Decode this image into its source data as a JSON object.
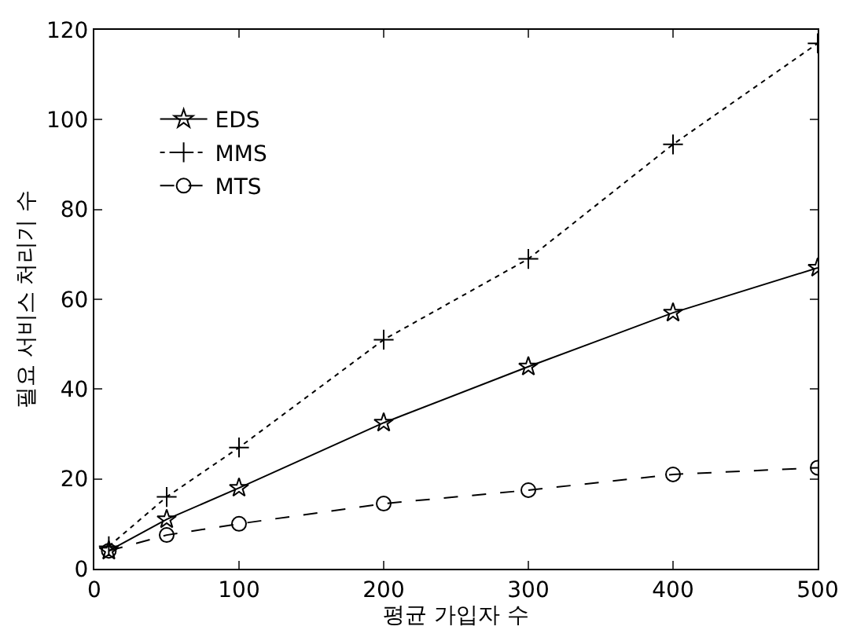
{
  "chart_data": {
    "type": "line",
    "xlabel": "평균 가입자 수",
    "ylabel": "필요 서비스 처리기 수",
    "x": [
      10,
      50,
      100,
      200,
      300,
      400,
      500
    ],
    "series": [
      {
        "name": "EDS",
        "color": "#000000",
        "marker": "star",
        "line_style": "solid",
        "values": [
          4,
          11,
          18,
          32.5,
          45,
          57,
          67
        ]
      },
      {
        "name": "MMS",
        "color": "#000000",
        "marker": "cross",
        "line_style": "dotted",
        "values": [
          5,
          16,
          27,
          51,
          69,
          94.5,
          117
        ]
      },
      {
        "name": "MTS",
        "color": "#000000",
        "marker": "circle",
        "line_style": "dashed",
        "values": [
          4,
          7.5,
          10,
          14.5,
          17.5,
          21,
          22.5
        ]
      }
    ],
    "xlim": [
      0,
      500
    ],
    "xticks": [
      0,
      100,
      200,
      300,
      400,
      500
    ],
    "ylim": [
      0,
      120
    ],
    "yticks": [
      0,
      20,
      40,
      60,
      80,
      100,
      120
    ],
    "legend": "top left"
  }
}
